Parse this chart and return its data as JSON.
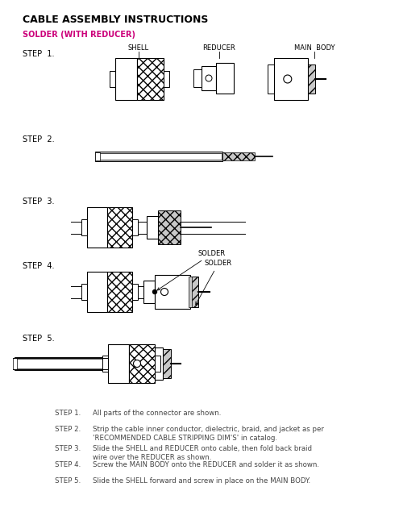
{
  "title": "CABLE ASSEMBLY INSTRUCTIONS",
  "subtitle": "SOLDER (WITH REDUCER)",
  "subtitle_color": "#cc007a",
  "title_color": "#000000",
  "background_color": "#ffffff",
  "step_labels": [
    "STEP  1.",
    "STEP  2.",
    "STEP  3.",
    "STEP  4.",
    "STEP  5."
  ],
  "step1_labels": [
    "SHELL",
    "REDUCER",
    "MAIN  BODY"
  ],
  "instructions": [
    [
      "STEP 1.   ",
      "All parts of the connector are shown."
    ],
    [
      "STEP 2.   ",
      "Strip the cable inner conductor, dielectric, braid, and jacket as per\n'RECOMMENDED CABLE STRIPPING DIM'S' in catalog."
    ],
    [
      "STEP 3.   ",
      "Slide the SHELL and REDUCER onto cable, then fold back braid\nwire over the REDUCER as shown."
    ],
    [
      "STEP 4.   ",
      "Screw the MAIN BODY onto the REDUCER and solder it as shown."
    ],
    [
      "STEP 5.   ",
      "Slide the SHELL forward and screw in place on the MAIN BODY."
    ]
  ],
  "gray_light": "#c8c8c8",
  "gray_dark": "#888888",
  "hatch_color": "#444444"
}
